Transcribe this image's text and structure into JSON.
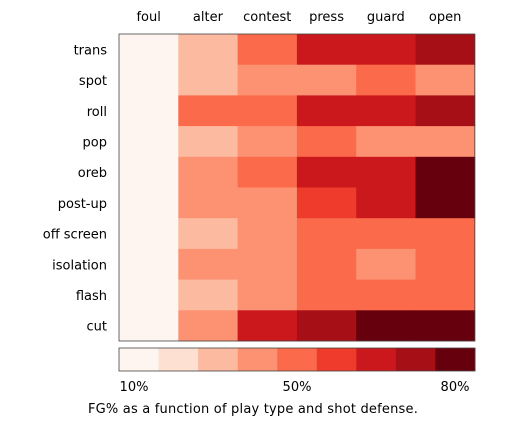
{
  "chart_data": {
    "type": "heatmap",
    "x_categories": [
      "foul",
      "alter",
      "contest",
      "press",
      "guard",
      "open"
    ],
    "y_categories": [
      "trans",
      "spot",
      "roll",
      "pop",
      "oreb",
      "post-up",
      "off screen",
      "isolation",
      "flash",
      "cut"
    ],
    "values": [
      [
        15,
        36,
        48,
        66,
        66,
        76
      ],
      [
        10,
        28,
        38,
        38,
        46,
        38
      ],
      [
        15,
        46,
        46,
        66,
        66,
        76
      ],
      [
        15,
        28,
        38,
        46,
        38,
        38
      ],
      [
        10,
        38,
        46,
        66,
        66,
        86
      ],
      [
        15,
        38,
        38,
        56,
        66,
        86
      ],
      [
        10,
        28,
        38,
        46,
        46,
        46
      ],
      [
        10,
        38,
        38,
        46,
        38,
        46
      ],
      [
        10,
        28,
        38,
        46,
        46,
        46
      ],
      [
        15,
        38,
        66,
        76,
        86,
        86
      ]
    ],
    "value_unit": "FG%",
    "colorbar": {
      "ticks": [
        "10%",
        "50%",
        "80%"
      ],
      "steps": 9,
      "min": 10,
      "max": 90
    },
    "palette": [
      "#fff5f0",
      "#fee0d2",
      "#fcbba1",
      "#fc9272",
      "#fb6a4a",
      "#ef3b2c",
      "#cb181d",
      "#a50f15",
      "#67000d"
    ],
    "caption": "FG% as a function of play type and shot defense."
  }
}
